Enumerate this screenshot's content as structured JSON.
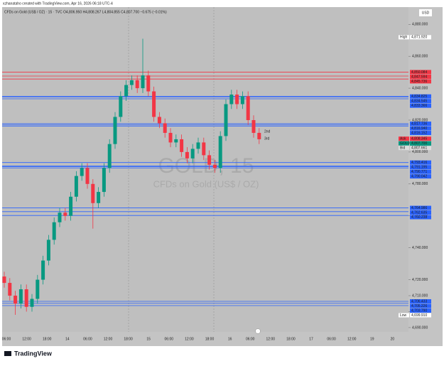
{
  "header": {
    "credit": "xzhanataho created with TradingView.com, Apr 16, 2026 06:18 UTC-4",
    "symbol_line": "CFDs on Gold (US$ / OZ) · 15 · TVC   O4,806.950 H4,808.267 L4,804.855 C4,807.700 −0.675 (−0.01%)"
  },
  "footer": {
    "brand": "TradingView"
  },
  "chart_data": {
    "type": "candlestick",
    "title": "GOLD, 15",
    "subtitle": "CFDs on Gold (US$ / OZ)",
    "currency": "USD",
    "up_color": "#089981",
    "down_color": "#f23645",
    "open": [
      4722,
      4718,
      4710,
      4705,
      4714,
      4703,
      4708,
      4720,
      4732,
      4745,
      4756,
      4762,
      4760,
      4772,
      4785,
      4790,
      4780,
      4768,
      4775,
      4790,
      4805,
      4822,
      4835,
      4842,
      4845,
      4840,
      4848,
      4838,
      4822,
      4818,
      4812,
      4806,
      4808,
      4800,
      4796,
      4802,
      4806,
      4798,
      4792,
      4790,
      4810,
      4830,
      4836,
      4830,
      4835,
      4820,
      4812
    ],
    "high": [
      4725,
      4721,
      4713,
      4717,
      4717,
      4711,
      4723,
      4735,
      4748,
      4759,
      4765,
      4765,
      4775,
      4788,
      4793,
      4793,
      4783,
      4778,
      4793,
      4808,
      4825,
      4838,
      4845,
      4848,
      4848,
      4871,
      4851,
      4841,
      4825,
      4821,
      4815,
      4811,
      4811,
      4803,
      4805,
      4809,
      4809,
      4801,
      4795,
      4813,
      4833,
      4839,
      4839,
      4838,
      4838,
      4823,
      4815
    ],
    "low": [
      4715,
      4707,
      4698,
      4702,
      4700,
      4700,
      4705,
      4717,
      4729,
      4742,
      4753,
      4757,
      4757,
      4769,
      4782,
      4777,
      4752,
      4765,
      4772,
      4787,
      4802,
      4819,
      4832,
      4839,
      4837,
      4837,
      4835,
      4819,
      4815,
      4809,
      4803,
      4803,
      4797,
      4793,
      4793,
      4799,
      4795,
      4789,
      4787,
      4787,
      4807,
      4827,
      4827,
      4827,
      4817,
      4809,
      4805
    ],
    "close": [
      4718,
      4710,
      4705,
      4714,
      4703,
      4708,
      4720,
      4732,
      4745,
      4756,
      4762,
      4760,
      4772,
      4785,
      4790,
      4780,
      4768,
      4775,
      4790,
      4805,
      4822,
      4835,
      4842,
      4845,
      4840,
      4848,
      4838,
      4822,
      4818,
      4812,
      4806,
      4808,
      4800,
      4796,
      4802,
      4806,
      4798,
      4792,
      4790,
      4810,
      4830,
      4836,
      4830,
      4835,
      4820,
      4812,
      4808
    ],
    "ylim": [
      4687.3,
      4890.8
    ],
    "yticks": [
      {
        "value": 4880,
        "label": "4,880.000"
      },
      {
        "value": 4860,
        "label": "4,860.000"
      },
      {
        "value": 4840,
        "label": "4,840.000"
      },
      {
        "value": 4820,
        "label": "4,820.000"
      },
      {
        "value": 4800,
        "label": "4,800.000"
      },
      {
        "value": 4780,
        "label": "4,780.000"
      },
      {
        "value": 4760,
        "label": "4,760.000"
      },
      {
        "value": 4740,
        "label": "4,740.000"
      },
      {
        "value": 4720,
        "label": "4,720.000"
      },
      {
        "value": 4710,
        "label": "4,710.000"
      },
      {
        "value": 4700,
        "label": "4,700.000"
      },
      {
        "value": 4690,
        "label": "4,690.000"
      }
    ],
    "xtick_labels": [
      "06:00",
      "12:00",
      "18:00",
      "14",
      "06:00",
      "12:00",
      "18:00",
      "15",
      "06:00",
      "12:00",
      "18:00",
      "16",
      "06:00",
      "12:00",
      "18:00",
      "17",
      "06:00",
      "12:00",
      "19",
      "20"
    ],
    "levels": [
      {
        "value": 4850.084,
        "label": "4,850.084",
        "color": "#f23645"
      },
      {
        "value": 4847.594,
        "label": "4,847.594",
        "color": "#f23645"
      },
      {
        "value": 4845.736,
        "label": "4,845.736",
        "color": "#f23645"
      },
      {
        "value": 4834.545,
        "label": "4,834.545",
        "color": "#2962ff"
      },
      {
        "value": 4834.825,
        "label": "4,834.825",
        "color": "#2962ff"
      },
      {
        "value": 4833.366,
        "label": "4,833.366",
        "color": "#2962ff"
      },
      {
        "value": 4817.736,
        "label": "4,817.736",
        "color": "#2962ff"
      },
      {
        "value": 4816.94,
        "label": "4,816.940",
        "color": "#2962ff"
      },
      {
        "value": 4816.152,
        "label": "4,816.152",
        "color": "#2962ff"
      },
      {
        "value": 4793.416,
        "label": "4,793.416",
        "color": "#2962ff"
      },
      {
        "value": 4791.195,
        "label": "4,791.195",
        "color": "#2962ff"
      },
      {
        "value": 4790.771,
        "label": "4,790.771",
        "color": "#2962ff"
      },
      {
        "value": 4790.042,
        "label": "4,790.042",
        "color": "#2962ff"
      },
      {
        "value": 4764.986,
        "label": "4,764.986",
        "color": "#2962ff"
      },
      {
        "value": 4762.635,
        "label": "4,762.635",
        "color": "#2962ff"
      },
      {
        "value": 4760.238,
        "label": "4,760.238",
        "color": "#2962ff"
      },
      {
        "value": 4706.433,
        "label": "4,706.433",
        "color": "#2962ff"
      },
      {
        "value": 4705.226,
        "label": "4,705.226",
        "color": "#2962ff"
      },
      {
        "value": 4703.79,
        "label": "4,703.790",
        "color": "#2962ff"
      }
    ],
    "markers": [
      {
        "name": "High",
        "value": 4871.92,
        "label": "4,871.920",
        "color": "#ffffff"
      },
      {
        "name": "Ask",
        "value": 4808.345,
        "label": "4,808.345",
        "color": "#f23645"
      },
      {
        "name": "Bid",
        "value": 4807.661,
        "label": "4,807.661",
        "color": "#dddddd"
      },
      {
        "name": "GOLD",
        "value": 4807.7,
        "label": "4,807.700",
        "color": "#089981"
      },
      {
        "name": "Low",
        "value": 4699.91,
        "label": "4,699.910",
        "color": "#ffffff"
      }
    ],
    "countdown": "11:27",
    "annotations": [
      "2nd",
      "3rd"
    ]
  }
}
